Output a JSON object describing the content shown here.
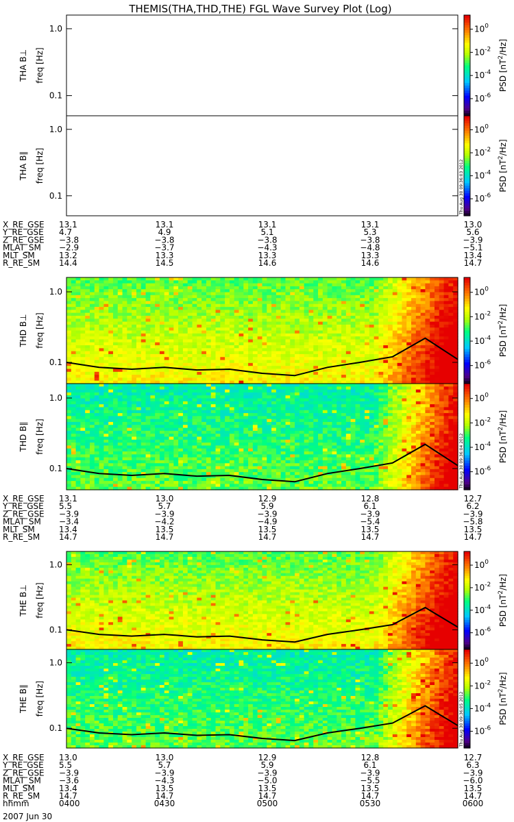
{
  "title": "THEMIS(THA,THD,THE) FGL Wave Survey Plot (Log)",
  "axis_unit": "freq [Hz]",
  "colorbar": {
    "label_main": "PSD [nT",
    "label_sup": "2",
    "label_end": "/Hz]",
    "ticks": [
      {
        "base": "10",
        "exp": "0"
      },
      {
        "base": "10",
        "exp": "-2"
      },
      {
        "base": "10",
        "exp": "-4"
      },
      {
        "base": "10",
        "exp": "-6"
      }
    ]
  },
  "colors": {
    "high": "#ff0000",
    "mid": "#ffff00",
    "low": "#00ff80",
    "min": "#000000"
  },
  "panels": [
    {
      "name": "THA B⊥",
      "empty": true,
      "stamp": ""
    },
    {
      "name": "THA B∥",
      "empty": true,
      "stamp": "Thu Aug 30 09:36:03 2012"
    },
    {
      "name": "THD B⊥",
      "empty": false,
      "stamp": ""
    },
    {
      "name": "THD B∥",
      "empty": false,
      "stamp": "Thu Aug 30 09:36:04 2012"
    },
    {
      "name": "THE B⊥",
      "empty": false,
      "stamp": ""
    },
    {
      "name": "THE B∥",
      "empty": false,
      "stamp": "Thu Aug 30 09:36:05 2012"
    }
  ],
  "ephemeris_groups": [
    {
      "rows": [
        {
          "label": "X_RE_GSE",
          "values": [
            "13.1",
            "13.1",
            "13.1",
            "13.1",
            "13.0"
          ]
        },
        {
          "label": "Y_RE_GSE",
          "values": [
            "4.7",
            "4.9",
            "5.1",
            "5.3",
            "5.6"
          ]
        },
        {
          "label": "Z_RE_GSE",
          "values": [
            "−3.8",
            "−3.8",
            "−3.8",
            "−3.8",
            "−3.9"
          ]
        },
        {
          "label": "MLAT_SM",
          "values": [
            "−2.9",
            "−3.7",
            "−4.3",
            "−4.8",
            "−5.1"
          ]
        },
        {
          "label": "MLT_SM",
          "values": [
            "13.2",
            "13.3",
            "13.3",
            "13.3",
            "13.4"
          ]
        },
        {
          "label": "R_RE_SM",
          "values": [
            "14.4",
            "14.5",
            "14.6",
            "14.6",
            "14.7"
          ]
        }
      ]
    },
    {
      "rows": [
        {
          "label": "X_RE_GSE",
          "values": [
            "13.1",
            "13.0",
            "12.9",
            "12.8",
            "12.7"
          ]
        },
        {
          "label": "Y_RE_GSE",
          "values": [
            "5.5",
            "5.7",
            "5.9",
            "6.1",
            "6.2"
          ]
        },
        {
          "label": "Z_RE_GSE",
          "values": [
            "−3.9",
            "−3.9",
            "−3.9",
            "−3.9",
            "−3.9"
          ]
        },
        {
          "label": "MLAT_SM",
          "values": [
            "−3.4",
            "−4.2",
            "−4.9",
            "−5.4",
            "−5.8"
          ]
        },
        {
          "label": "MLT_SM",
          "values": [
            "13.4",
            "13.5",
            "13.5",
            "13.5",
            "13.5"
          ]
        },
        {
          "label": "R_RE_SM",
          "values": [
            "14.7",
            "14.7",
            "14.7",
            "14.7",
            "14.7"
          ]
        }
      ]
    },
    {
      "rows": [
        {
          "label": "X_RE_GSE",
          "values": [
            "13.0",
            "13.0",
            "12.9",
            "12.8",
            "12.7"
          ]
        },
        {
          "label": "Y_RE_GSE",
          "values": [
            "5.5",
            "5.7",
            "5.9",
            "6.1",
            "6.3"
          ]
        },
        {
          "label": "Z_RE_GSE",
          "values": [
            "−3.9",
            "−3.9",
            "−3.9",
            "−3.9",
            "−3.9"
          ]
        },
        {
          "label": "MLAT_SM",
          "values": [
            "−3.6",
            "−4.3",
            "−5.0",
            "−5.5",
            "−6.0"
          ]
        },
        {
          "label": "MLT_SM",
          "values": [
            "13.4",
            "13.5",
            "13.5",
            "13.5",
            "13.5"
          ]
        },
        {
          "label": "R_RE_SM",
          "values": [
            "14.7",
            "14.7",
            "14.7",
            "14.7",
            "14.7"
          ]
        },
        {
          "label": "hhmm",
          "values": [
            "0400",
            "0430",
            "0500",
            "0530",
            "0600"
          ]
        }
      ]
    }
  ],
  "date_label": "2007 Jun 30",
  "chart_data": {
    "type": "heatmap",
    "title": "THEMIS(THA,THD,THE) FGL Wave Survey Plot (Log)",
    "x": [
      "0400",
      "0430",
      "0500",
      "0530",
      "0600"
    ],
    "xlabel": "hhmm",
    "ylabel": "freq [Hz]",
    "y_scale": "log",
    "yticks": [
      0.1,
      1.0
    ],
    "ylim": [
      0.05,
      1.6
    ],
    "colorbar_label": "PSD [nT^2/Hz]",
    "colorbar_scale": "log",
    "colorbar_ticks": [
      "10^0",
      "10^-2",
      "10^-4",
      "10^-6"
    ],
    "panels": [
      {
        "name": "THA B⊥",
        "has_data": false
      },
      {
        "name": "THA B∥",
        "has_data": false
      },
      {
        "name": "THD B⊥",
        "has_data": true,
        "note": "broadband PSD near 10^-2 to 10^0, increasing after ~0540"
      },
      {
        "name": "THD B∥",
        "has_data": true,
        "note": "lower PSD (10^-4 to 10^-2) before ~0540, high after"
      },
      {
        "name": "THE B⊥",
        "has_data": true,
        "note": "broadband PSD near 10^-2 to 10^0, increasing after ~0540"
      },
      {
        "name": "THE B∥",
        "has_data": true,
        "note": "lower PSD (10^-4 to 10^-2) before ~0540, high after"
      }
    ],
    "gyrofrequency_line": {
      "x": [
        "0400",
        "0410",
        "0420",
        "0430",
        "0440",
        "0450",
        "0500",
        "0510",
        "0520",
        "0530",
        "0540",
        "0550",
        "0600"
      ],
      "y_hz": [
        0.1,
        0.085,
        0.08,
        0.085,
        0.078,
        0.08,
        0.07,
        0.065,
        0.085,
        0.1,
        0.12,
        0.22,
        0.11
      ]
    }
  }
}
